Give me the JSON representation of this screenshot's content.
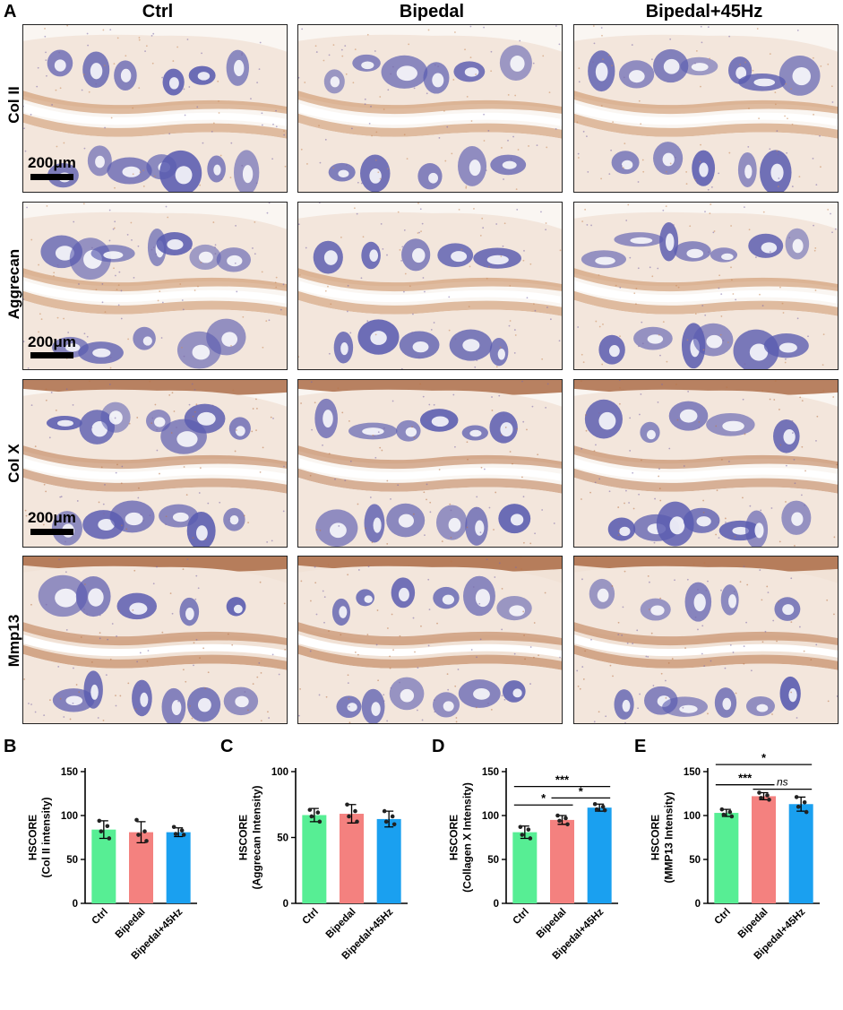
{
  "figure": {
    "panel_letters": [
      "A",
      "B",
      "C",
      "D",
      "E"
    ],
    "columns": [
      "Ctrl",
      "Bipedal",
      "Bipedal+45Hz"
    ],
    "rows": [
      "Col II",
      "Aggrecan",
      "Col X",
      "Mmp13"
    ],
    "scale_bar": "200μm",
    "colors": {
      "ctrl": "#57ee94",
      "bipedal": "#f4817f",
      "bipedal45": "#1aa0f0",
      "stain_hematoxylin": "#5a5cb0",
      "stain_dab": "#c98a5b",
      "tissue_bg": "#f3e6dc"
    }
  },
  "chart_data": [
    {
      "panel": "B",
      "type": "bar",
      "categories": [
        "Ctrl",
        "Bipedal",
        "Bipedal+45Hz"
      ],
      "values": [
        84,
        81,
        81
      ],
      "errors": [
        10,
        12,
        5
      ],
      "points": [
        [
          94,
          88,
          82,
          74
        ],
        [
          95,
          82,
          78,
          71
        ],
        [
          87,
          83,
          79,
          78
        ]
      ],
      "ylabel": "HSCORE\n(Col II intensity)",
      "ylim": [
        0,
        150
      ],
      "yticks": [
        0,
        50,
        100,
        150
      ],
      "significance": []
    },
    {
      "panel": "C",
      "type": "bar",
      "categories": [
        "Ctrl",
        "Bipedal",
        "Bipedal+45Hz"
      ],
      "values": [
        67,
        68,
        64
      ],
      "errors": [
        5,
        7,
        6
      ],
      "points": [
        [
          71,
          69,
          66,
          62
        ],
        [
          75,
          70,
          66,
          62
        ],
        [
          70,
          66,
          62,
          60
        ]
      ],
      "ylabel": "HSCORE\n(Aggrecan Intensity)",
      "ylim": [
        0,
        100
      ],
      "yticks": [
        0,
        50,
        100
      ],
      "significance": []
    },
    {
      "panel": "D",
      "type": "bar",
      "categories": [
        "Ctrl",
        "Bipedal",
        "Bipedal+45Hz"
      ],
      "values": [
        81,
        95,
        109
      ],
      "errors": [
        7,
        5,
        4
      ],
      "points": [
        [
          87,
          84,
          78,
          74
        ],
        [
          100,
          97,
          94,
          90
        ],
        [
          113,
          110,
          107,
          106
        ]
      ],
      "ylabel": "HSCORE\n(Collagen X Intensity)",
      "ylim": [
        0,
        150
      ],
      "yticks": [
        0,
        50,
        100,
        150
      ],
      "significance": [
        {
          "from": 0,
          "to": 2,
          "label": "***",
          "y": 133
        },
        {
          "from": 0,
          "to": 1,
          "label": "*",
          "y": 112
        },
        {
          "from": 1,
          "to": 2,
          "label": "*",
          "y": 120
        }
      ]
    },
    {
      "panel": "E",
      "type": "bar",
      "categories": [
        "Ctrl",
        "Bipedal",
        "Bipedal+45Hz"
      ],
      "values": [
        103,
        122,
        113
      ],
      "errors": [
        4,
        4,
        8
      ],
      "points": [
        [
          107,
          104,
          101,
          99
        ],
        [
          126,
          123,
          120,
          118
        ],
        [
          121,
          115,
          110,
          104
        ]
      ],
      "ylabel": "HSCORE\n(MMP13 Intensity)",
      "ylim": [
        0,
        150
      ],
      "yticks": [
        0,
        50,
        100,
        150
      ],
      "significance": [
        {
          "from": 0,
          "to": 2,
          "label": "*",
          "y": 158
        },
        {
          "from": 0,
          "to": 1,
          "label": "***",
          "y": 135
        },
        {
          "from": 1,
          "to": 2,
          "label": "ns",
          "y": 130,
          "italic": true
        }
      ]
    }
  ]
}
